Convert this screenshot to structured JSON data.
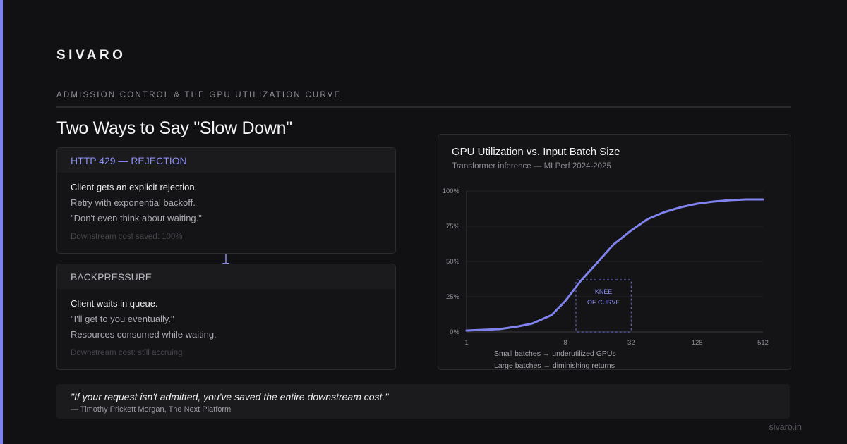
{
  "brand": "SIVARO",
  "section_label": "ADMISSION CONTROL & THE GPU UTILIZATION CURVE",
  "headline": "Two Ways to Say \"Slow Down\"",
  "cards": [
    {
      "title": "HTTP 429 — REJECTION",
      "lines": [
        "Client gets an explicit rejection.",
        "Retry with exponential backoff.",
        "\"Don't even think about waiting.\""
      ],
      "cost": "Downstream cost saved: 100%"
    },
    {
      "title": "BACKPRESSURE",
      "lines": [
        "Client waits in queue.",
        "\"I'll get to you eventually.\"",
        "Resources consumed while waiting."
      ],
      "cost": "Downstream cost: still accruing"
    }
  ],
  "chart_data": {
    "type": "line",
    "title": "GPU Utilization vs. Input Batch Size",
    "subtitle": "Transformer inference — MLPerf 2024-2025",
    "x_scale": "log2",
    "x_ticks": [
      "1",
      "8",
      "32",
      "128",
      "512"
    ],
    "y_ticks": [
      "100%",
      "75%",
      "50%",
      "25%",
      "0%"
    ],
    "ylim": [
      0,
      100
    ],
    "x": [
      1,
      2,
      3,
      4,
      6,
      8,
      11,
      16,
      22,
      32,
      45,
      64,
      91,
      128,
      181,
      256,
      362,
      512
    ],
    "values": [
      1,
      2,
      4,
      6,
      12,
      22,
      36,
      50,
      62,
      72,
      80,
      85,
      88.5,
      91,
      92.5,
      93.5,
      94,
      94
    ],
    "annotation": {
      "lines": [
        "KNEE",
        "OF CURVE"
      ],
      "x_range": [
        8,
        32
      ],
      "y_range": [
        0,
        37
      ]
    },
    "notes": [
      "Small batches → underutilized GPUs",
      "Large batches → diminishing returns"
    ],
    "line_color": "#8083ee",
    "grid": true
  },
  "quote": {
    "text": "\"If your request isn't admitted, you've saved the entire downstream cost.\"",
    "attribution": "— Timothy Prickett Morgan, The Next Platform"
  },
  "site": "sivaro.in",
  "colors": {
    "accent": "#7b7ff0",
    "background": "#111113"
  }
}
